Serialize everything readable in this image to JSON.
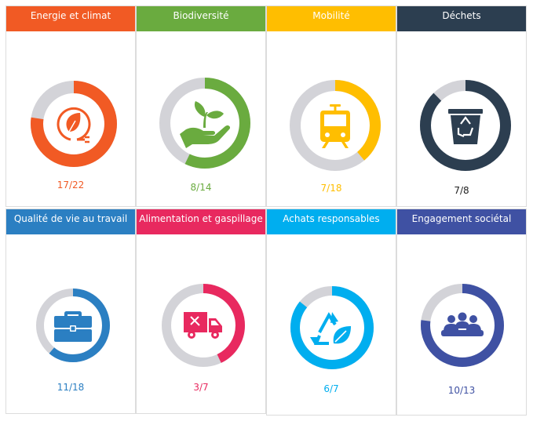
{
  "categories": [
    {
      "title": "Energie et climat",
      "count": "17/22",
      "value": 17,
      "total": 22,
      "color": "#f15a24",
      "icon": "plug-leaf-icon"
    },
    {
      "title": "Biodiversité",
      "count": "8/14",
      "value": 8,
      "total": 14,
      "color": "#6aab3f",
      "icon": "hand-plant-icon"
    },
    {
      "title": "Mobilité",
      "count": "7/18",
      "value": 7,
      "total": 18,
      "color": "#ffbe00",
      "icon": "tram-icon"
    },
    {
      "title": "Déchets",
      "count": "7/8",
      "value": 7,
      "total": 8,
      "color": "#2c3e50",
      "icon": "recycle-bin-icon"
    },
    {
      "title": "Qualité de vie au travail",
      "count": "11/18",
      "value": 11,
      "total": 18,
      "color": "#2b7fc2",
      "icon": "briefcase-icon"
    },
    {
      "title": "Alimentation et gaspillage",
      "count": "3/7",
      "value": 3,
      "total": 7,
      "color": "#e8295f",
      "icon": "food-truck-icon"
    },
    {
      "title": "Achats responsables",
      "count": "6/7",
      "value": 6,
      "total": 7,
      "color": "#00aeef",
      "icon": "recycle-leaf-icon"
    },
    {
      "title": "Engagement sociétal",
      "count": "10/13",
      "value": 10,
      "total": 13,
      "color": "#3f51a3",
      "icon": "meeting-group-icon"
    }
  ],
  "track_color": "#d3d3d8"
}
